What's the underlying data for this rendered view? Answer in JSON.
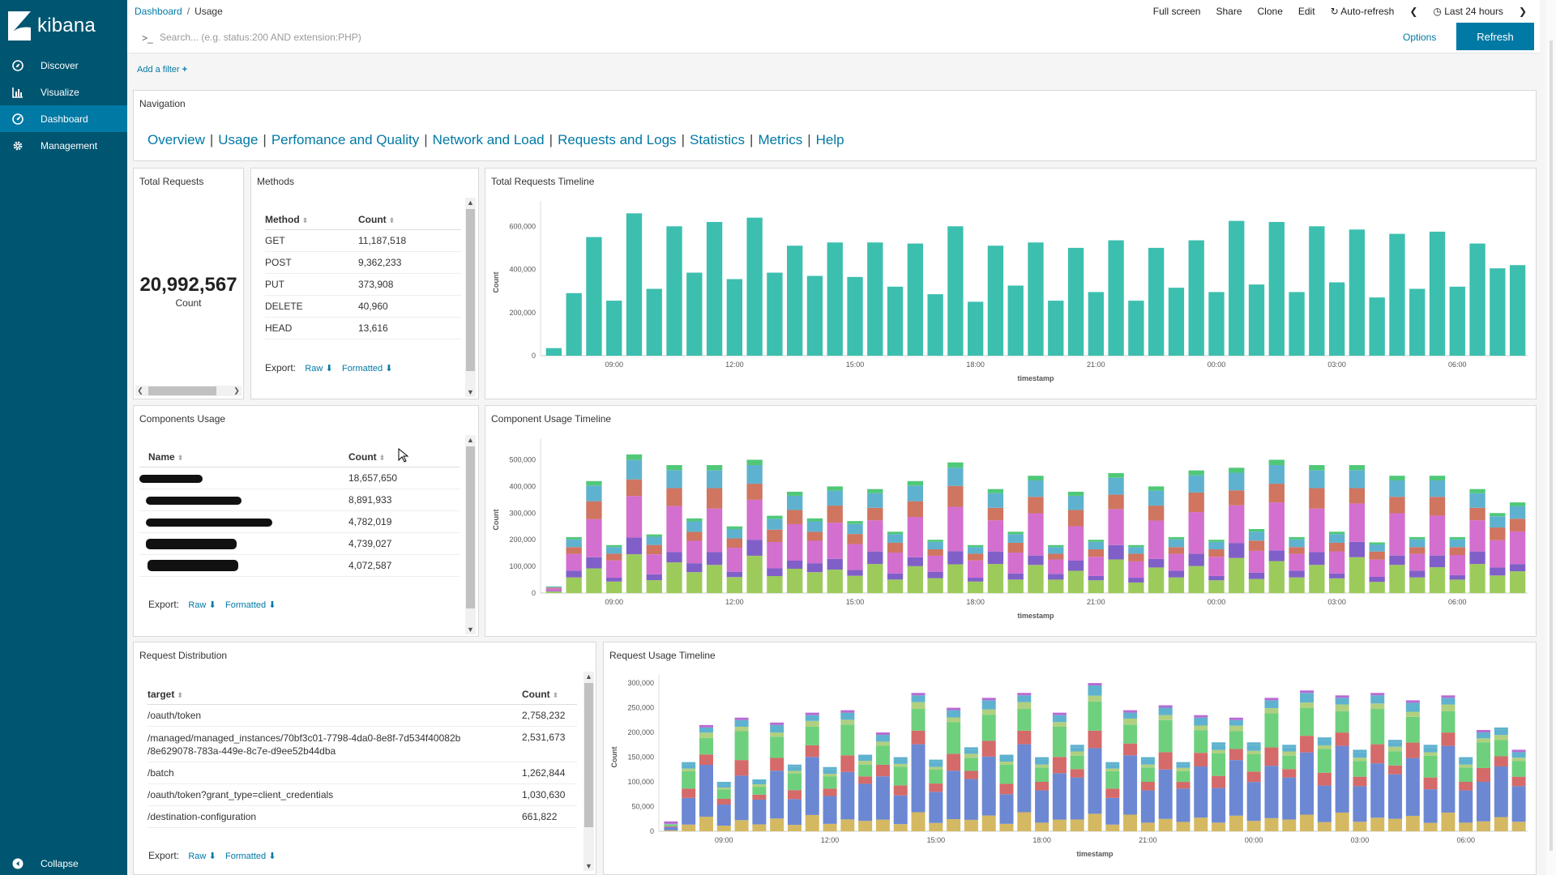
{
  "app": {
    "logo_text": "kibana"
  },
  "sidebar": {
    "items": [
      {
        "label": "Discover",
        "icon": "compass-icon"
      },
      {
        "label": "Visualize",
        "icon": "bar-chart-icon"
      },
      {
        "label": "Dashboard",
        "icon": "dashboard-icon",
        "active": true
      },
      {
        "label": "Management",
        "icon": "gear-icon"
      }
    ],
    "collapse_label": "Collapse"
  },
  "breadcrumb": {
    "root": "Dashboard",
    "separator": "/",
    "current": "Usage"
  },
  "topmenu": {
    "full_screen": "Full screen",
    "share": "Share",
    "clone": "Clone",
    "edit": "Edit",
    "auto_refresh": "Auto-refresh",
    "time_range": "Last 24 hours"
  },
  "search": {
    "prompt": ">_",
    "placeholder": "Search... (e.g. status:200 AND extension:PHP)",
    "options_label": "Options",
    "refresh_label": "Refresh"
  },
  "filter": {
    "add_label": "Add a filter"
  },
  "colors": {
    "sidebar": "#005571",
    "accent": "#0079a5",
    "teal": "#3cbfae"
  },
  "panels": {
    "navigation": {
      "title": "Navigation",
      "links": [
        "Overview",
        "Usage",
        "Perfomance and Quality",
        "Network and Load",
        "Requests and Logs",
        "Statistics",
        "Metrics",
        "Help"
      ]
    },
    "total_requests": {
      "title": "Total Requests",
      "value": "20,992,567",
      "label": "Count"
    },
    "methods": {
      "title": "Methods",
      "col_method": "Method",
      "col_count": "Count",
      "rows": [
        {
          "method": "GET",
          "count": "11,187,518"
        },
        {
          "method": "POST",
          "count": "9,362,233"
        },
        {
          "method": "PUT",
          "count": "373,908"
        },
        {
          "method": "DELETE",
          "count": "40,960"
        },
        {
          "method": "HEAD",
          "count": "13,616"
        }
      ],
      "export_label": "Export:",
      "raw_label": "Raw",
      "formatted_label": "Formatted"
    },
    "components": {
      "title": "Components Usage",
      "col_name": "Name",
      "col_count": "Count",
      "rows": [
        {
          "count": "18,657,650"
        },
        {
          "count": "8,891,933"
        },
        {
          "count": "4,782,019"
        },
        {
          "count": "4,739,027"
        },
        {
          "count": "4,072,587"
        }
      ],
      "export_label": "Export:",
      "raw_label": "Raw",
      "formatted_label": "Formatted"
    },
    "request_distribution": {
      "title": "Request Distribution",
      "col_target": "target",
      "col_count": "Count",
      "rows": [
        {
          "target": "/oauth/token",
          "count": "2,758,232"
        },
        {
          "target": "/managed/managed_instances/70bf3c01-7798-4da0-8e8f-7d534f40082b",
          "target2": "/8e629078-783a-449e-8c7e-d9ee52b44dba",
          "count": "2,531,673"
        },
        {
          "target": "/batch",
          "count": "1,262,844"
        },
        {
          "target": "/oauth/token?grant_type=client_credentials",
          "count": "1,030,630"
        },
        {
          "target": "/destination-configuration",
          "count": "661,822"
        }
      ],
      "export_label": "Export:",
      "raw_label": "Raw",
      "formatted_label": "Formatted"
    }
  },
  "chart_data": [
    {
      "type": "bar",
      "title": "Total Requests Timeline",
      "xlabel": "timestamp",
      "ylabel": "Count",
      "ylim": [
        0,
        680000
      ],
      "yticks": [
        0,
        200000,
        400000,
        600000
      ],
      "ytick_labels": [
        "0",
        "200,000",
        "400,000",
        "600,000"
      ],
      "xtick_labels": [
        "09:00",
        "12:00",
        "15:00",
        "18:00",
        "21:00",
        "00:00",
        "03:00",
        "06:00"
      ],
      "xtick_positions": [
        3.5,
        9.5,
        15.5,
        21.5,
        27.5,
        33.5,
        39.5,
        45.5
      ],
      "color": "#3cbfae",
      "values": [
        35000,
        290000,
        550000,
        255000,
        660000,
        310000,
        600000,
        385000,
        620000,
        355000,
        640000,
        385000,
        510000,
        370000,
        525000,
        365000,
        525000,
        320000,
        520000,
        285000,
        600000,
        250000,
        510000,
        325000,
        525000,
        255000,
        500000,
        295000,
        535000,
        255000,
        500000,
        315000,
        535000,
        295000,
        625000,
        330000,
        620000,
        295000,
        600000,
        340000,
        585000,
        270000,
        565000,
        310000,
        575000,
        320000,
        520000,
        405000,
        420000
      ]
    },
    {
      "type": "bar",
      "stacked": true,
      "title": "Component Usage Timeline",
      "xlabel": "timestamp",
      "ylabel": "Count",
      "ylim": [
        0,
        550000
      ],
      "yticks": [
        0,
        100000,
        200000,
        300000,
        400000,
        500000
      ],
      "ytick_labels": [
        "0",
        "100,000",
        "200,000",
        "300,000",
        "400,000",
        "500,000"
      ],
      "xtick_labels": [
        "09:00",
        "12:00",
        "15:00",
        "18:00",
        "21:00",
        "00:00",
        "03:00",
        "06:00"
      ],
      "xtick_positions": [
        3.5,
        9.5,
        15.5,
        21.5,
        27.5,
        33.5,
        39.5,
        45.5
      ],
      "series_colors": [
        "#9ccb5c",
        "#8060c8",
        "#d36fcf",
        "#cf7560",
        "#5fb2cf",
        "#50c878"
      ],
      "totals": [
        25000,
        210000,
        420000,
        180000,
        520000,
        220000,
        480000,
        280000,
        480000,
        250000,
        500000,
        290000,
        380000,
        280000,
        400000,
        270000,
        390000,
        230000,
        420000,
        200000,
        490000,
        180000,
        390000,
        230000,
        440000,
        180000,
        380000,
        200000,
        450000,
        180000,
        400000,
        210000,
        460000,
        200000,
        470000,
        240000,
        500000,
        210000,
        480000,
        230000,
        480000,
        190000,
        440000,
        210000,
        440000,
        210000,
        390000,
        300000,
        340000
      ]
    },
    {
      "type": "bar",
      "stacked": true,
      "title": "Request Usage Timeline",
      "xlabel": "timestamp",
      "ylabel": "Count",
      "ylim": [
        0,
        300000
      ],
      "yticks": [
        0,
        50000,
        100000,
        150000,
        200000,
        250000,
        300000
      ],
      "ytick_labels": [
        "0",
        "50,000",
        "100,000",
        "150,000",
        "200,000",
        "250,000",
        "300,000"
      ],
      "xtick_labels": [
        "09:00",
        "12:00",
        "15:00",
        "18:00",
        "21:00",
        "00:00",
        "03:00",
        "06:00"
      ],
      "xtick_positions": [
        3.5,
        9.5,
        15.5,
        21.5,
        27.5,
        33.5,
        39.5,
        45.5
      ],
      "series_colors": [
        "#d4b962",
        "#6c88d3",
        "#d56a6a",
        "#6ed07d",
        "#b0d080",
        "#5fb2cf",
        "#b86bd3"
      ],
      "totals": [
        15000,
        135000,
        210000,
        95000,
        225000,
        100000,
        215000,
        130000,
        235000,
        125000,
        240000,
        150000,
        195000,
        145000,
        275000,
        140000,
        245000,
        165000,
        265000,
        150000,
        275000,
        145000,
        235000,
        170000,
        295000,
        135000,
        240000,
        145000,
        250000,
        135000,
        230000,
        175000,
        225000,
        175000,
        265000,
        170000,
        280000,
        185000,
        270000,
        160000,
        275000,
        180000,
        260000,
        170000,
        270000,
        145000,
        200000,
        205000,
        160000
      ]
    }
  ]
}
